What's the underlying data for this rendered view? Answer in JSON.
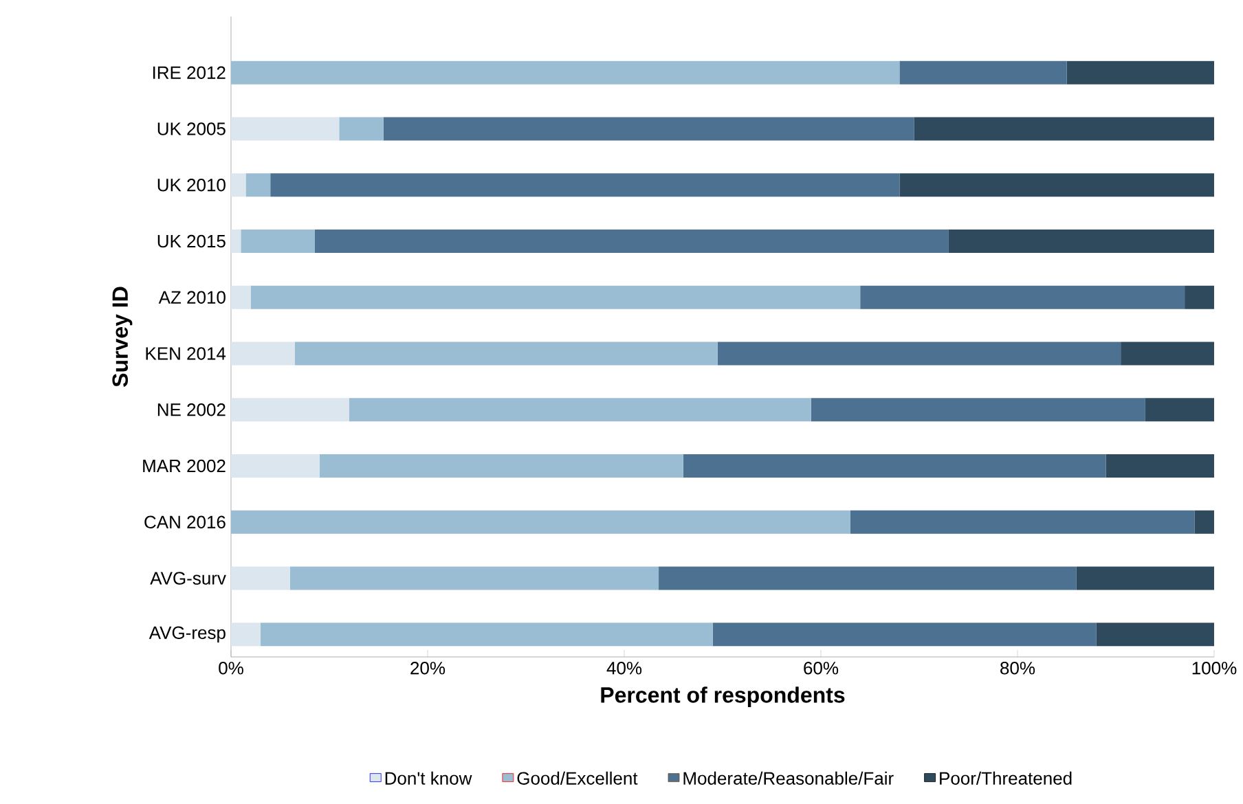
{
  "chart_data": {
    "type": "bar",
    "orientation": "horizontal",
    "stacked": true,
    "categories": [
      "IRE 2012",
      "UK 2005",
      "UK 2010",
      "UK 2015",
      "AZ 2010",
      "KEN 2014",
      "NE 2002",
      "MAR 2002",
      "CAN 2016",
      "AVG-surv",
      "AVG-resp"
    ],
    "series": [
      {
        "name": "Don't know",
        "color": "#dce6ee",
        "values": [
          0,
          11,
          1.5,
          1,
          2,
          6.5,
          12,
          9,
          0,
          6,
          3
        ]
      },
      {
        "name": "Good/Excellent",
        "color": "#9bbdd3",
        "values": [
          68,
          4.5,
          2.5,
          7.5,
          62,
          43,
          47,
          37,
          63,
          37.5,
          46
        ]
      },
      {
        "name": "Moderate/Reasonable/Fair",
        "color": "#4d7291",
        "values": [
          17,
          54,
          64,
          64.5,
          33,
          41,
          34,
          43,
          35,
          42.5,
          39
        ]
      },
      {
        "name": "Poor/Threatened",
        "color": "#2f4a5c",
        "values": [
          15,
          30.5,
          32,
          27,
          3,
          9.5,
          7,
          11,
          2,
          14,
          12
        ]
      }
    ],
    "xlim": [
      0,
      100
    ],
    "xticks": [
      {
        "value": 0,
        "label": "0%"
      },
      {
        "value": 20,
        "label": "20%"
      },
      {
        "value": 40,
        "label": "40%"
      },
      {
        "value": 60,
        "label": "60%"
      },
      {
        "value": 80,
        "label": "80%"
      },
      {
        "value": 100,
        "label": "100%"
      }
    ],
    "xlabel": "Percent of respondents",
    "ylabel": "Survey ID",
    "legend": "bottom"
  }
}
